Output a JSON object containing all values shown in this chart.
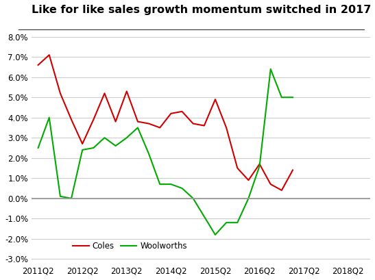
{
  "title": "Like for like sales growth momentum switched in 2017",
  "x_labels": [
    "2011Q2",
    "2012Q2",
    "2013Q2",
    "2014Q2",
    "2015Q2",
    "2016Q2",
    "2017Q2",
    "2018Q2"
  ],
  "coles_y": [
    0.066,
    0.071,
    0.052,
    0.039,
    0.027,
    0.039,
    0.052,
    0.038,
    0.053,
    0.038,
    0.037,
    0.035,
    0.042,
    0.043,
    0.037,
    0.036,
    0.049,
    0.035,
    0.015,
    0.009,
    0.017,
    0.007,
    0.004,
    0.014
  ],
  "woolworths_y": [
    0.025,
    0.04,
    0.001,
    0.0,
    0.024,
    0.025,
    0.03,
    0.026,
    0.03,
    0.035,
    0.022,
    0.007,
    0.007,
    0.005,
    0.0,
    -0.009,
    -0.018,
    -0.012,
    -0.012,
    0.0,
    0.016,
    0.064,
    0.05,
    0.05
  ],
  "coles_color": "#d00000",
  "woolworths_color": "#00aa00",
  "zero_line_color": "#999999",
  "grid_color": "#cccccc",
  "ylim": [
    -0.032,
    0.088
  ],
  "yticks": [
    -0.03,
    -0.02,
    -0.01,
    0.0,
    0.01,
    0.02,
    0.03,
    0.04,
    0.05,
    0.06,
    0.07,
    0.08
  ],
  "background_color": "#ffffff",
  "title_fontsize": 11.5,
  "tick_fontsize": 8.5,
  "legend_labels": [
    "Coles",
    "Woolworths"
  ],
  "n_points": 24,
  "x_tick_positions": [
    0,
    2,
    4,
    6,
    8,
    10,
    12,
    14
  ]
}
